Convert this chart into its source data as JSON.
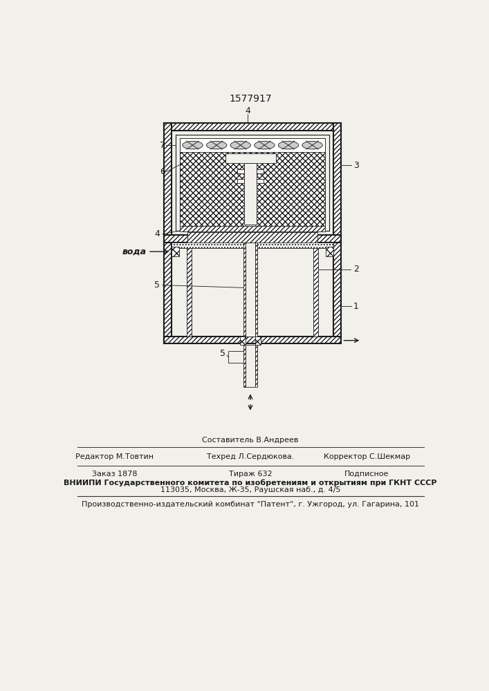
{
  "title": "1577917",
  "bg_color": "#f2f0eb",
  "line_color": "#1a1a1a",
  "title_text": "1577917",
  "voda_label": "вода",
  "footer_sestavitel": "Составитель В.Андреев",
  "footer_redaktor": "Редактор М.Товтин",
  "footer_tehred": "Техред Л.Сердюкова.",
  "footer_korrektor": "Корректор С.Шекмар",
  "footer_zakaz": "Заказ 1878",
  "footer_tirazh": "Тираж 632",
  "footer_podpisnoe": "Подписное",
  "footer_vniipи": "ВНИИПИ Государственного комитета по изобретениям и открытиям при ГКНТ СССР",
  "footer_addr": "113035, Москва, Ж-35, Раушская наб., д. 4/5",
  "footer_patent": "Производственно-издательский комбинат \"Патент\", г. Ужгород, ул. Гагарина, 101"
}
